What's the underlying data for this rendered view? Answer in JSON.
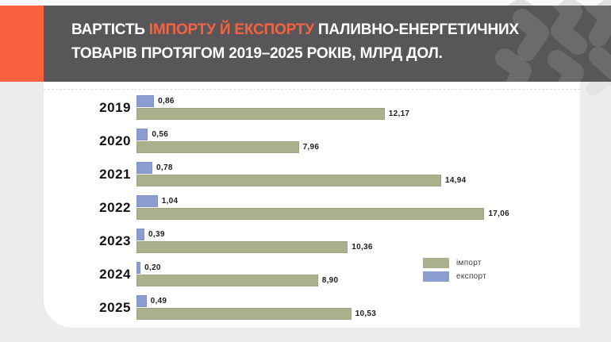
{
  "header": {
    "title_part1": "ВАРТІСТЬ ",
    "title_highlight": "ІМПОРТУ Й ЕКСПОРТУ",
    "title_part2": " ПАЛИВНО-ЕНЕРГЕТИЧНИХ ТОВАРІВ ПРОТЯГОМ 2019–2025 РОКІВ, МЛРД ДОЛ.",
    "text_color": "#FFFFFF",
    "accent_color": "#F8623F",
    "background_color": "#585659"
  },
  "chart_data": {
    "type": "bar",
    "orientation": "horizontal",
    "title": "ВАРТІСТЬ ІМПОРТУ Й ЕКСПОРТУ ПАЛИВНО-ЕНЕРГЕТИЧНИХ ТОВАРІВ ПРОТЯГОМ 2019–2025 РОКІВ, МЛРД ДОЛ.",
    "unit": "млрд дол.",
    "categories": [
      "2019",
      "2020",
      "2021",
      "2022",
      "2023",
      "2024",
      "2025"
    ],
    "series": [
      {
        "name": "імпорт",
        "color": "#ABB08D",
        "values": [
          12.17,
          7.96,
          14.94,
          17.06,
          10.36,
          8.9,
          10.53
        ],
        "labels": [
          "12,17",
          "7,96",
          "14,94",
          "17,06",
          "10,36",
          "8,90",
          "10,53"
        ]
      },
      {
        "name": "експорт",
        "color": "#8C9DD1",
        "values": [
          0.86,
          0.56,
          0.78,
          1.04,
          0.39,
          0.2,
          0.49
        ],
        "labels": [
          "0,86",
          "0,56",
          "0,78",
          "1,04",
          "0,39",
          "0,20",
          "0,49"
        ]
      }
    ],
    "xlim": [
      0,
      17.5
    ],
    "grid": false,
    "value_labels": true,
    "legend_position": "middle-right",
    "background_color": "#FFFFFF"
  }
}
